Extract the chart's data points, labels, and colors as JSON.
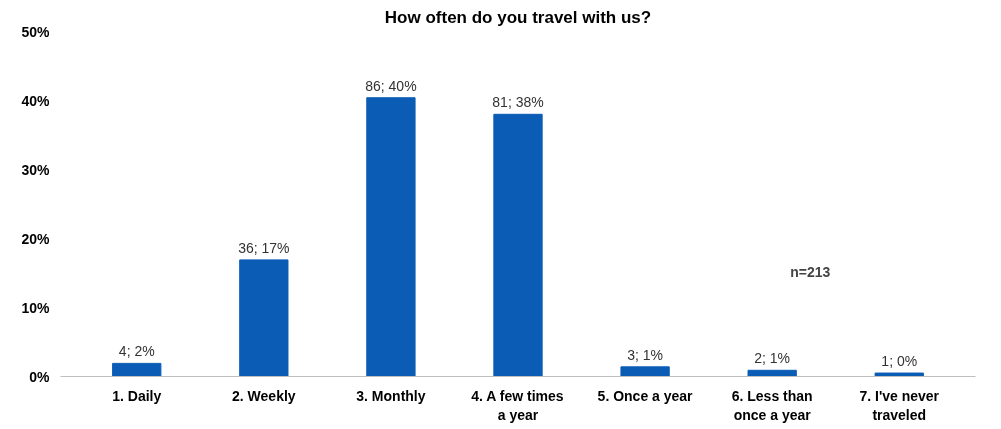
{
  "chart_data": {
    "type": "bar",
    "title": "How often do you travel with us?",
    "categories": [
      "1. Daily",
      "2. Weekly",
      "3. Monthly",
      "4. A few times a year",
      "5. Once a year",
      "6. Less than once a year",
      "7. I've never traveled"
    ],
    "values": [
      1.9,
      16.9,
      40.4,
      38.0,
      1.4,
      0.9,
      0.5
    ],
    "value_labels": [
      "4; 2%",
      "36; 17%",
      "86; 40%",
      "81; 38%",
      "3; 1%",
      "2; 1%",
      "1; 0%"
    ],
    "color": "#0b5cb5",
    "ylim": [
      0,
      50
    ],
    "yticks": [
      {
        "value": 0,
        "label": "0%"
      },
      {
        "value": 10,
        "label": "10%"
      },
      {
        "value": 20,
        "label": "20%"
      },
      {
        "value": 30,
        "label": "30%"
      },
      {
        "value": 40,
        "label": "40%"
      },
      {
        "value": 50,
        "label": "50%"
      }
    ],
    "annotations": [
      "n=213"
    ],
    "grid": false
  }
}
